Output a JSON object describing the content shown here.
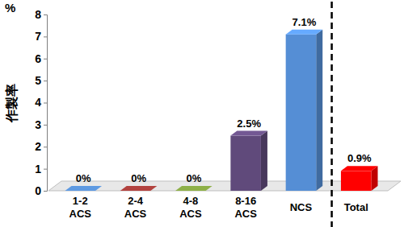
{
  "chart_data": {
    "type": "bar",
    "ylabel": "作製率",
    "yunit": "%",
    "categories": [
      "1-2\nACS",
      "2-4\nACS",
      "4-8\nACS",
      "8-16\nACS",
      "NCS",
      "Total"
    ],
    "values": [
      0,
      0,
      0,
      2.5,
      7.1,
      0.9
    ],
    "value_labels": [
      "0%",
      "0%",
      "0%",
      "2.5%",
      "7.1%",
      "0.9%"
    ],
    "colors": [
      "#4f81bd",
      "#953735",
      "#77933c",
      "#604a7b",
      "#558ed5",
      "#ff0000"
    ],
    "ylim": [
      0,
      8
    ],
    "yticks": [
      0,
      1,
      2,
      3,
      4,
      5,
      6,
      7,
      8
    ],
    "grid": false,
    "data_labels": true
  }
}
